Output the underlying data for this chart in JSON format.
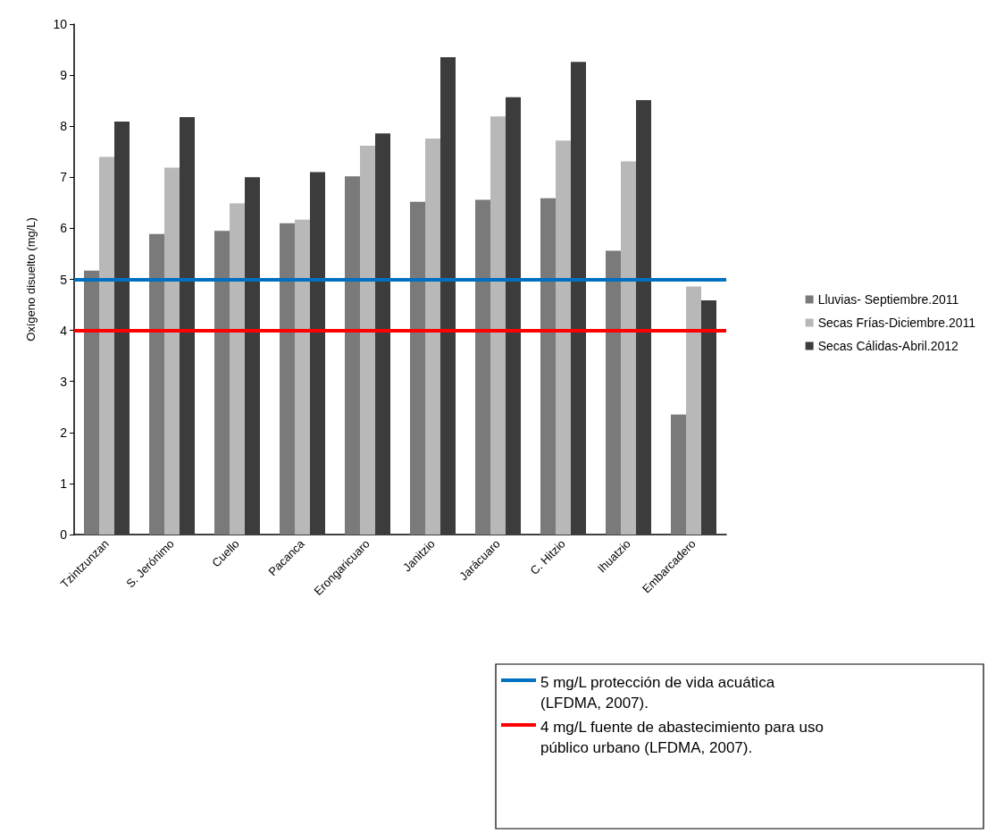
{
  "chart_data": {
    "type": "bar",
    "ylabel": "Oxígeno disuelto (mg/L)",
    "categories": [
      "Tzintzunzan",
      "S. Jerónimo",
      "Cuello",
      "Pacanca",
      "Erongaricuaro",
      "Janitzio",
      "Jarácuaro",
      "C. Hitzio",
      "Ihuatzio",
      "Embarcadero"
    ],
    "series": [
      {
        "name": "Lluvias- Septiembre.2011",
        "color": "#7a7a7a",
        "values": [
          5.17,
          5.89,
          5.95,
          6.1,
          7.02,
          6.52,
          6.56,
          6.59,
          5.56,
          2.35
        ]
      },
      {
        "name": "Secas Frías-Diciembre.2011",
        "color": "#b8b8b8",
        "values": [
          7.4,
          7.19,
          6.49,
          6.17,
          7.62,
          7.76,
          8.19,
          7.72,
          7.31,
          4.86
        ]
      },
      {
        "name": "Secas Cálidas-Abril.2012",
        "color": "#3c3c3c",
        "values": [
          8.09,
          8.18,
          7.0,
          7.1,
          7.86,
          9.35,
          8.57,
          9.26,
          8.51,
          4.59
        ]
      }
    ],
    "ylim": [
      0,
      10
    ],
    "yticks": [
      0,
      1,
      2,
      3,
      4,
      5,
      6,
      7,
      8,
      9,
      10
    ],
    "grid": false,
    "legend": "right",
    "ref_lines": [
      {
        "axis": "y",
        "value": 5,
        "label": "5 mg/L protección de vida acuática (LFDMA, 2007).",
        "color": "#0070c0"
      },
      {
        "axis": "y",
        "value": 4,
        "label": "4 mg/L fuente de abastecimiento para uso público urbano (LFDMA, 2007).",
        "color": "#ff0000"
      }
    ]
  }
}
